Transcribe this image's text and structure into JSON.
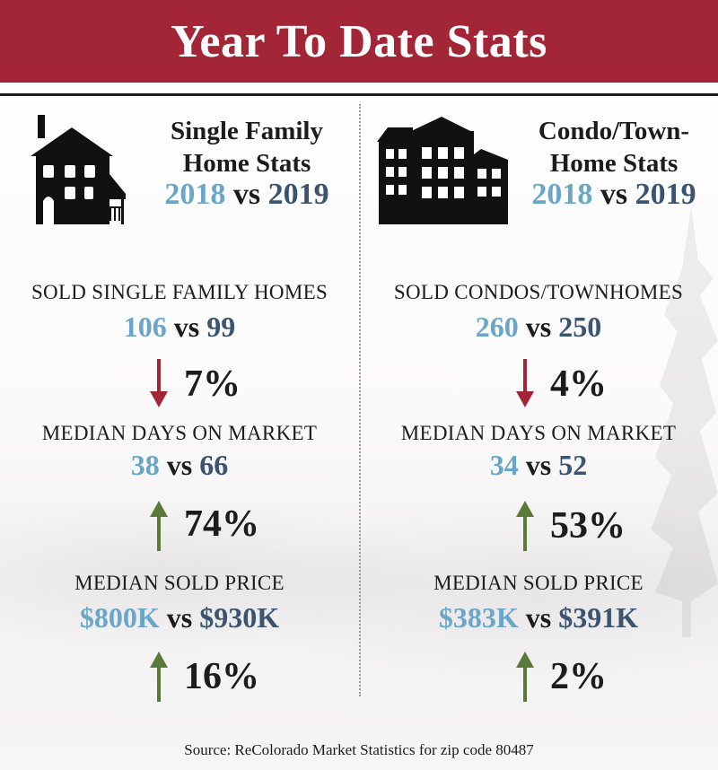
{
  "title": "Year To Date Stats",
  "left": {
    "heading_line1": "Single Family",
    "heading_line2": "Home Stats",
    "year_a": "2018",
    "year_vs": "vs",
    "year_b": "2019",
    "icon": "single-family-house-icon",
    "stats": [
      {
        "label": "SOLD SINGLE FAMILY HOMES",
        "a": "106",
        "b": "99",
        "pct": "7%",
        "direction": "down"
      },
      {
        "label": "MEDIAN DAYS ON MARKET",
        "a": "38",
        "b": "66",
        "pct": "74%",
        "direction": "up"
      },
      {
        "label": "MEDIAN SOLD PRICE",
        "a": "$800K",
        "b": "$930K",
        "pct": "16%",
        "direction": "up"
      }
    ]
  },
  "right": {
    "heading_line1": "Condo/Town-",
    "heading_line2": "Home Stats",
    "year_a": "2018",
    "year_vs": "vs",
    "year_b": "2019",
    "icon": "condo-buildings-icon",
    "stats": [
      {
        "label": "SOLD CONDOS/TOWNHOMES",
        "a": "260",
        "b": "250",
        "pct": "4%",
        "direction": "down"
      },
      {
        "label": "MEDIAN DAYS ON MARKET",
        "a": "34",
        "b": "52",
        "pct": "53%",
        "direction": "up"
      },
      {
        "label": "MEDIAN SOLD PRICE",
        "a": "$383K",
        "b": "$391K",
        "pct": "2%",
        "direction": "up"
      }
    ]
  },
  "vs_word": "vs",
  "source": "Source: ReColorado Market Statistics for zip code 80487",
  "colors": {
    "banner": "#a32637",
    "year_a": "#6aa6c8",
    "year_b": "#3b5470",
    "down_arrow": "#a32637",
    "up_arrow": "#5a7a3a"
  }
}
